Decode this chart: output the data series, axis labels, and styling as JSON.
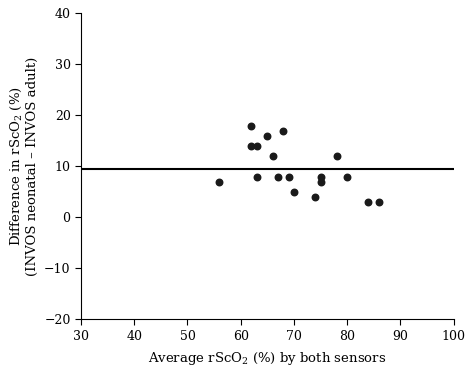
{
  "x_data": [
    56,
    62,
    62,
    63,
    63,
    65,
    66,
    67,
    68,
    69,
    70,
    74,
    75,
    75,
    78,
    80,
    84,
    86
  ],
  "y_data": [
    7,
    18,
    14,
    14,
    8,
    16,
    12,
    8,
    17,
    8,
    5,
    4,
    8,
    7,
    12,
    8,
    3,
    3
  ],
  "mean_line": 9.5,
  "xlim": [
    30,
    100
  ],
  "ylim": [
    -20,
    40
  ],
  "xticks": [
    30,
    40,
    50,
    60,
    70,
    80,
    90,
    100
  ],
  "yticks": [
    -20,
    -10,
    0,
    10,
    20,
    30,
    40
  ],
  "xlabel": "Average rScO$_2$ (%) by both sensors",
  "ylabel_top": "Difference in rScO$_2$ (%)",
  "ylabel_bottom": "(INVOS neonatal – INVOS adult)",
  "marker_color": "#1a1a1a",
  "marker_size": 22,
  "line_color": "black",
  "line_width": 1.5,
  "bg_color": "white",
  "font_size_ticks": 9,
  "font_size_label": 9.5
}
